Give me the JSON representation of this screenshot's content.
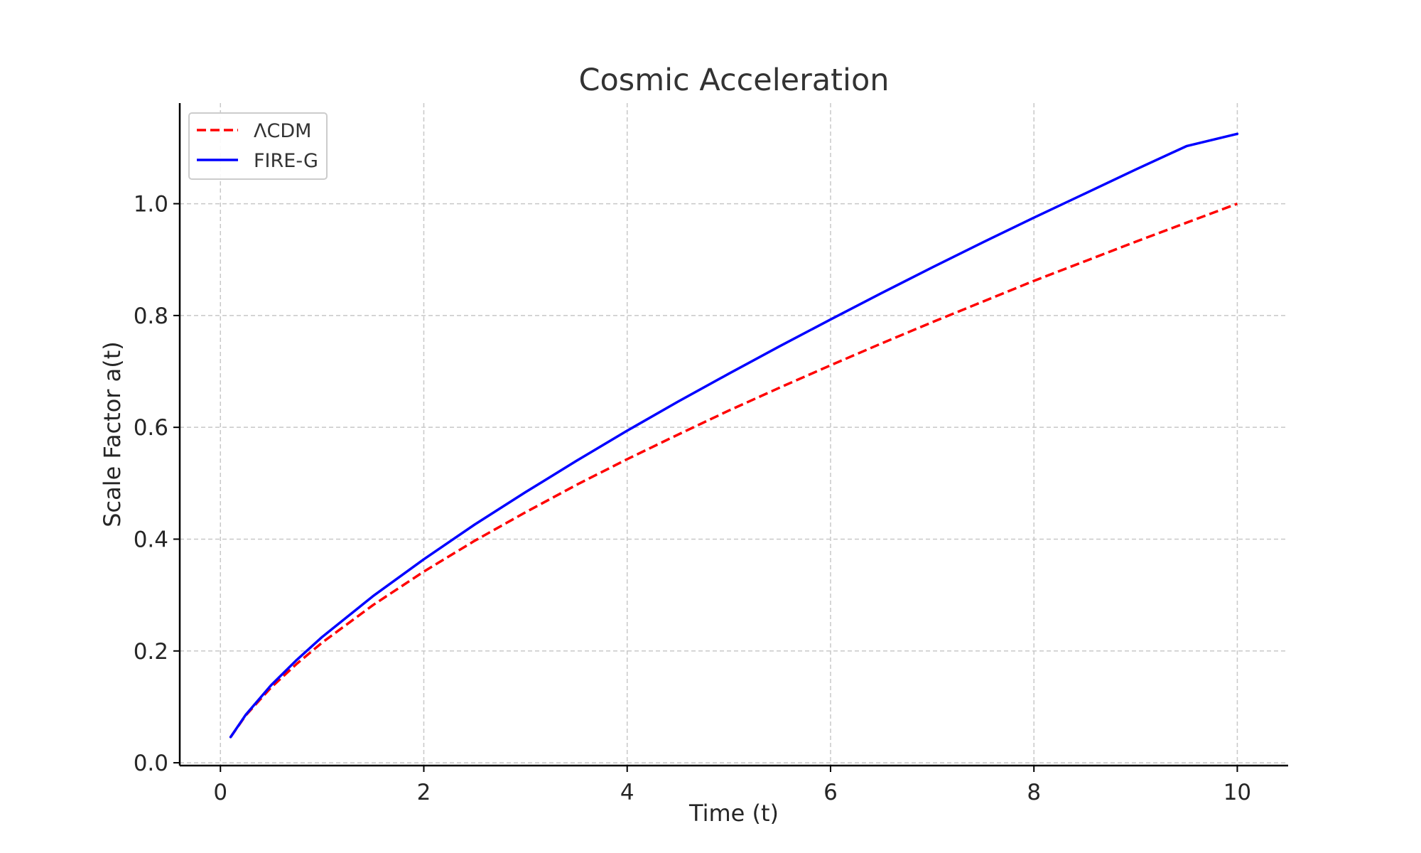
{
  "chart_data": {
    "type": "line",
    "title": "Cosmic Acceleration",
    "xlabel": "Time (t)",
    "ylabel": "Scale Factor a(t)",
    "xlim": [
      -0.4,
      10.5
    ],
    "ylim": [
      -0.005,
      1.18
    ],
    "xticks": [
      0,
      2,
      4,
      6,
      8,
      10
    ],
    "yticks": [
      0.0,
      0.2,
      0.4,
      0.6,
      0.8,
      1.0
    ],
    "xtick_labels": [
      "0",
      "2",
      "4",
      "6",
      "8",
      "10"
    ],
    "ytick_labels": [
      "0.0",
      "0.2",
      "0.4",
      "0.6",
      "0.8",
      "1.0"
    ],
    "grid": true,
    "legend_position": "upper-left",
    "x": [
      0.1,
      0.25,
      0.5,
      0.75,
      1.0,
      1.5,
      2.0,
      2.5,
      3.0,
      3.5,
      4.0,
      4.5,
      5.0,
      5.5,
      6.0,
      6.5,
      7.0,
      7.5,
      8.0,
      8.5,
      9.0,
      9.5,
      10.0
    ],
    "series": [
      {
        "name": "ΛCDM",
        "color": "#ff0000",
        "style": "dashed",
        "values": [
          0.046,
          0.085,
          0.135,
          0.177,
          0.215,
          0.282,
          0.342,
          0.397,
          0.448,
          0.497,
          0.543,
          0.587,
          0.63,
          0.671,
          0.711,
          0.75,
          0.788,
          0.825,
          0.862,
          0.897,
          0.932,
          0.966,
          1.0
        ]
      },
      {
        "name": "FIRE-G",
        "color": "#0000ff",
        "style": "solid",
        "values": [
          0.046,
          0.086,
          0.139,
          0.184,
          0.225,
          0.298,
          0.364,
          0.426,
          0.484,
          0.54,
          0.594,
          0.646,
          0.696,
          0.745,
          0.793,
          0.84,
          0.886,
          0.931,
          0.975,
          1.018,
          1.061,
          1.103,
          1.125
        ]
      }
    ]
  }
}
